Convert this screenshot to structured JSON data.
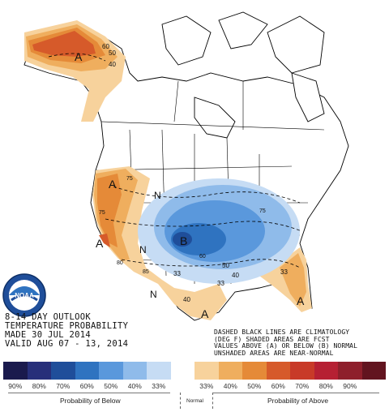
{
  "title_lines": [
    "8-14 DAY OUTLOOK",
    "TEMPERATURE PROBABILITY",
    "MADE  30 JUL 2014",
    "VALID  AUG 07 - 13, 2014"
  ],
  "notes_lines": [
    "DASHED BLACK LINES ARE CLIMATOLOGY",
    "(DEG F) SHADED AREAS ARE FCST",
    "VALUES ABOVE (A) OR BELOW (B) NORMAL",
    "UNSHADED AREAS ARE NEAR-NORMAL"
  ],
  "logo_text": "NOAA",
  "map_labels": {
    "a_alaska": "A",
    "a_pacific": "A",
    "a_california": "A",
    "a_texas": "A",
    "a_florida": "A",
    "b_central": "B",
    "n_north": "N",
    "n_west": "N",
    "n_southwest": "N",
    "c60": "60",
    "c50": "50",
    "c40a": "40",
    "c40b": "40",
    "c33a": "33",
    "c33b": "33",
    "c75a": "75",
    "c75b": "75",
    "c75c": "75",
    "c80": "80",
    "c85": "85",
    "c60b": "60",
    "c50b": "50",
    "c40c": "40",
    "c33c": "33"
  },
  "legend": {
    "swatches": [
      "#1a1a4d",
      "#272f7a",
      "#1f4e9a",
      "#2f73c0",
      "#5a98dc",
      "#8fbbea",
      "#c6dcf4",
      "#ffffff",
      "#f7d29c",
      "#efae5e",
      "#e58a38",
      "#d65a2a",
      "#c83a28",
      "#b62033",
      "#8e1f2b",
      "#62141f"
    ],
    "labels": [
      "90%",
      "80%",
      "70%",
      "60%",
      "50%",
      "40%",
      "33%",
      "",
      "33%",
      "40%",
      "50%",
      "60%",
      "70%",
      "80%",
      "90%",
      ""
    ],
    "below_caption": "Probability of Below",
    "normal_caption": "Normal",
    "above_caption": "Probability of Above"
  }
}
